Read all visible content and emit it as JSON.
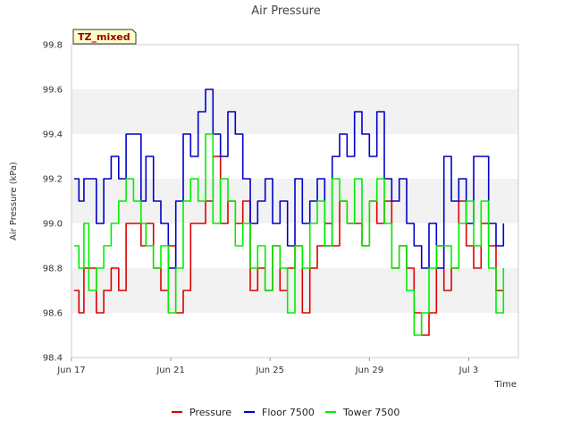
{
  "chart_data": {
    "type": "line",
    "title": "Air Pressure",
    "xlabel": "Time",
    "ylabel": "Air Pressure (kPa)",
    "badge": "TZ_mixed",
    "ylim": [
      98.4,
      99.8
    ],
    "yticks": [
      "98.4",
      "98.6",
      "98.8",
      "99.0",
      "99.2",
      "99.4",
      "99.6",
      "99.8"
    ],
    "x_range": [
      "Jun 17",
      "Jul 5"
    ],
    "xticks": [
      "Jun 17",
      "Jun 21",
      "Jun 25",
      "Jun 29",
      "Jul 3"
    ],
    "grid": "horizontal bands",
    "legend_position": "bottom",
    "colors": {
      "Pressure": "#dd0000",
      "Floor 7500": "#0000cc",
      "Tower 7500": "#00ee00",
      "band": "#f2f2f2",
      "badge_bg": "#ffffcc"
    },
    "series": [
      {
        "name": "Pressure",
        "x": [
          0.1,
          0.3,
          0.5,
          0.7,
          1.0,
          1.3,
          1.6,
          1.9,
          2.2,
          2.5,
          2.8,
          3.0,
          3.3,
          3.6,
          3.9,
          4.2,
          4.5,
          4.8,
          5.1,
          5.4,
          5.7,
          6.0,
          6.3,
          6.6,
          6.9,
          7.2,
          7.5,
          7.8,
          8.1,
          8.4,
          8.7,
          9.0,
          9.3,
          9.6,
          9.9,
          10.2,
          10.5,
          10.8,
          11.1,
          11.4,
          11.7,
          12.0,
          12.3,
          12.6,
          12.9,
          13.2,
          13.5,
          13.8,
          14.1,
          14.4,
          14.7,
          15.0,
          15.3,
          15.6,
          15.9,
          16.2,
          16.5,
          16.8,
          17.1,
          17.4
        ],
        "values": [
          98.7,
          98.6,
          98.8,
          98.8,
          98.6,
          98.7,
          98.8,
          98.7,
          99.0,
          99.0,
          98.9,
          99.0,
          98.8,
          98.7,
          98.9,
          98.6,
          98.7,
          99.0,
          99.0,
          99.1,
          99.3,
          99.0,
          99.1,
          99.0,
          99.1,
          98.7,
          98.8,
          98.7,
          98.9,
          98.7,
          98.8,
          98.9,
          98.6,
          98.8,
          98.9,
          99.0,
          98.9,
          99.1,
          99.0,
          99.0,
          98.9,
          99.1,
          99.0,
          99.1,
          98.8,
          98.9,
          98.8,
          98.6,
          98.5,
          98.6,
          98.9,
          98.7,
          98.8,
          99.1,
          98.9,
          98.8,
          99.0,
          98.9,
          98.7,
          98.7
        ]
      },
      {
        "name": "Floor 7500",
        "x": [
          0.1,
          0.3,
          0.5,
          0.7,
          1.0,
          1.3,
          1.6,
          1.9,
          2.2,
          2.5,
          2.8,
          3.0,
          3.3,
          3.6,
          3.9,
          4.2,
          4.5,
          4.8,
          5.1,
          5.4,
          5.7,
          6.0,
          6.3,
          6.6,
          6.9,
          7.2,
          7.5,
          7.8,
          8.1,
          8.4,
          8.7,
          9.0,
          9.3,
          9.6,
          9.9,
          10.2,
          10.5,
          10.8,
          11.1,
          11.4,
          11.7,
          12.0,
          12.3,
          12.6,
          12.9,
          13.2,
          13.5,
          13.8,
          14.1,
          14.4,
          14.7,
          15.0,
          15.3,
          15.6,
          15.9,
          16.2,
          16.5,
          16.8,
          17.1,
          17.4
        ],
        "values": [
          99.2,
          99.1,
          99.2,
          99.2,
          99.0,
          99.2,
          99.3,
          99.2,
          99.4,
          99.4,
          99.1,
          99.3,
          99.1,
          99.0,
          98.8,
          99.1,
          99.4,
          99.3,
          99.5,
          99.6,
          99.4,
          99.3,
          99.5,
          99.4,
          99.2,
          99.0,
          99.1,
          99.2,
          99.0,
          99.1,
          98.9,
          99.2,
          99.0,
          99.1,
          99.2,
          98.9,
          99.3,
          99.4,
          99.3,
          99.5,
          99.4,
          99.3,
          99.5,
          99.2,
          99.1,
          99.2,
          99.0,
          98.9,
          98.8,
          99.0,
          98.8,
          99.3,
          99.1,
          99.2,
          99.0,
          99.3,
          99.3,
          99.0,
          98.9,
          99.0
        ]
      },
      {
        "name": "Tower 7500",
        "x": [
          0.1,
          0.3,
          0.5,
          0.7,
          1.0,
          1.3,
          1.6,
          1.9,
          2.2,
          2.5,
          2.8,
          3.0,
          3.3,
          3.6,
          3.9,
          4.2,
          4.5,
          4.8,
          5.1,
          5.4,
          5.7,
          6.0,
          6.3,
          6.6,
          6.9,
          7.2,
          7.5,
          7.8,
          8.1,
          8.4,
          8.7,
          9.0,
          9.3,
          9.6,
          9.9,
          10.2,
          10.5,
          10.8,
          11.1,
          11.4,
          11.7,
          12.0,
          12.3,
          12.6,
          12.9,
          13.2,
          13.5,
          13.8,
          14.1,
          14.4,
          14.7,
          15.0,
          15.3,
          15.6,
          15.9,
          16.2,
          16.5,
          16.8,
          17.1,
          17.4
        ],
        "values": [
          98.9,
          98.8,
          99.0,
          98.7,
          98.8,
          98.9,
          99.0,
          99.1,
          99.2,
          99.1,
          99.0,
          98.9,
          98.8,
          98.9,
          98.6,
          98.8,
          99.1,
          99.2,
          99.1,
          99.4,
          99.0,
          99.2,
          99.1,
          98.9,
          99.0,
          98.8,
          98.9,
          98.7,
          98.9,
          98.8,
          98.6,
          98.9,
          98.8,
          99.0,
          99.1,
          98.9,
          99.2,
          99.1,
          99.0,
          99.2,
          98.9,
          99.1,
          99.2,
          99.0,
          98.8,
          98.9,
          98.7,
          98.5,
          98.6,
          98.8,
          98.9,
          98.9,
          98.8,
          99.0,
          99.1,
          98.9,
          99.1,
          98.8,
          98.6,
          98.8
        ]
      }
    ]
  }
}
